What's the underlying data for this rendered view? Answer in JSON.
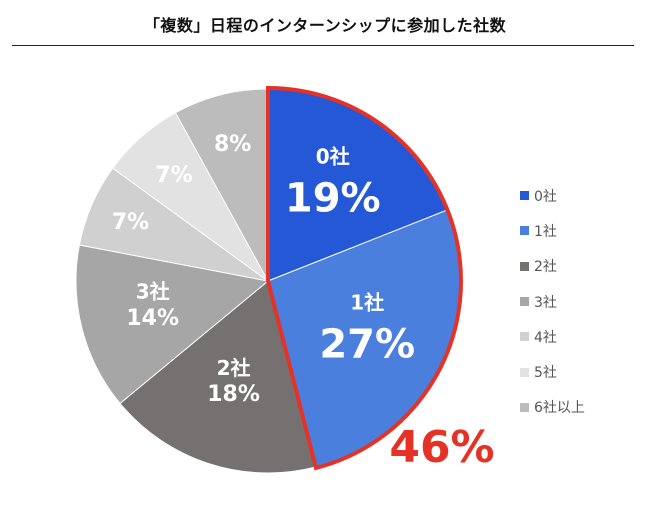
{
  "chart_data": {
    "type": "pie",
    "title": "「複数」日程のインターンシップに参加した社数",
    "categories": [
      "0社",
      "1社",
      "2社",
      "3社",
      "4社",
      "5社",
      "6社以上"
    ],
    "values": [
      19,
      27,
      18,
      14,
      7,
      7,
      8
    ],
    "value_labels": [
      "19%",
      "27%",
      "18%",
      "14%",
      "7%",
      "7%",
      "8%"
    ],
    "colors": [
      "#2458d6",
      "#4a7fde",
      "#767171",
      "#a6a6a6",
      "#d0d0d0",
      "#e2e2e2",
      "#bcbcbc"
    ],
    "legend_position": "right",
    "highlight": {
      "categories": [
        "0社",
        "1社"
      ],
      "label": "46%",
      "color": "#e53226"
    }
  }
}
